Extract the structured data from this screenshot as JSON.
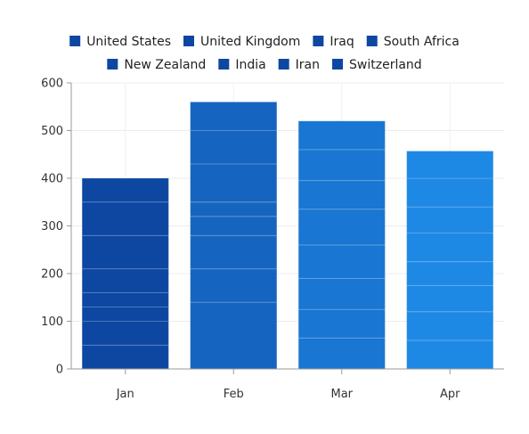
{
  "chart_data": {
    "type": "bar",
    "stacked": true,
    "categories": [
      "Jan",
      "Feb",
      "Mar",
      "Apr"
    ],
    "series": [
      {
        "name": "United States",
        "values": [
          50,
          140,
          65,
          60
        ]
      },
      {
        "name": "United Kingdom",
        "values": [
          50,
          70,
          60,
          60
        ]
      },
      {
        "name": "Iraq",
        "values": [
          30,
          70,
          65,
          55
        ]
      },
      {
        "name": "South Africa",
        "values": [
          30,
          40,
          70,
          50
        ]
      },
      {
        "name": "New Zealand",
        "values": [
          50,
          30,
          75,
          60
        ]
      },
      {
        "name": "India",
        "values": [
          70,
          80,
          60,
          55
        ]
      },
      {
        "name": "Iran",
        "values": [
          70,
          70,
          65,
          60
        ]
      },
      {
        "name": "Switzerland",
        "values": [
          50,
          60,
          60,
          57
        ]
      }
    ],
    "totals": [
      400,
      560,
      520,
      457
    ],
    "yticks": [
      0,
      100,
      200,
      300,
      400,
      500,
      600
    ],
    "ylim": [
      0,
      600
    ],
    "grid": true,
    "legend_position": "top",
    "legend_marker_color": "#0D47A1",
    "category_colors": [
      "#0D47A1",
      "#1565C0",
      "#1976D2",
      "#1E88E5"
    ]
  }
}
